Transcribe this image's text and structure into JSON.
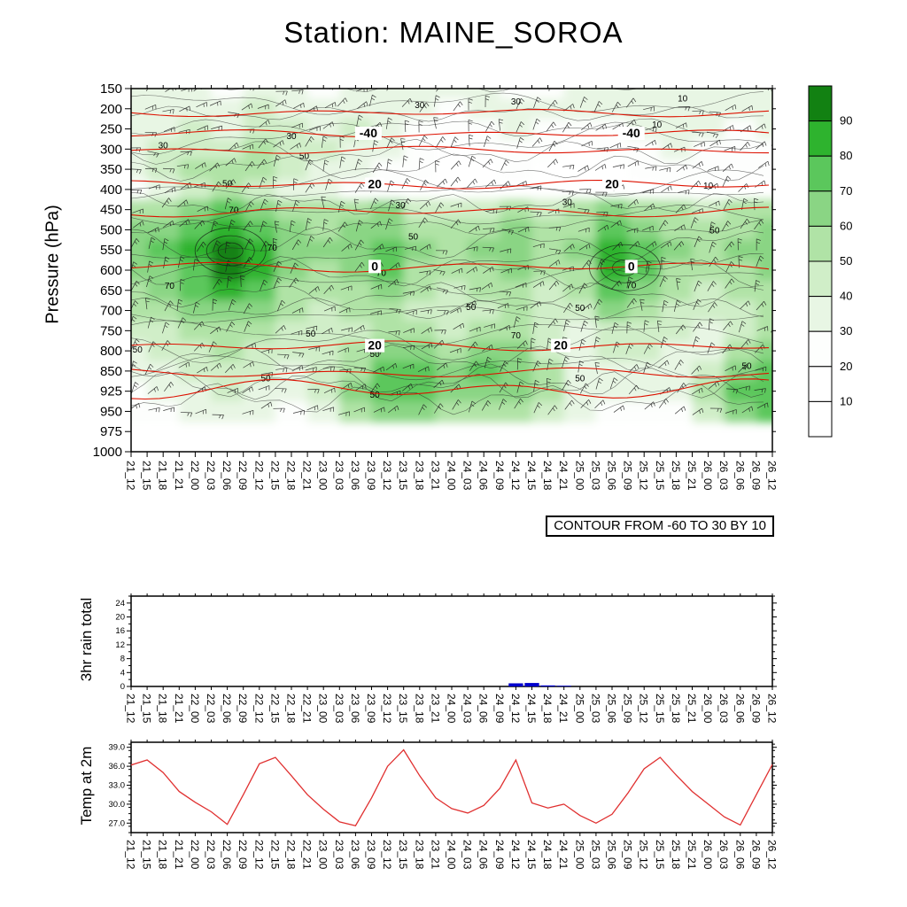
{
  "title": "Station: MAINE_SOROA",
  "time_labels": [
    "21_12",
    "21_15",
    "21_18",
    "21_21",
    "22_00",
    "22_03",
    "22_06",
    "22_09",
    "22_12",
    "22_15",
    "22_18",
    "22_21",
    "23_00",
    "23_03",
    "23_06",
    "23_09",
    "23_12",
    "23_15",
    "23_18",
    "23_21",
    "24_00",
    "24_03",
    "24_06",
    "24_09",
    "24_12",
    "24_15",
    "24_18",
    "24_21",
    "25_00",
    "25_03",
    "25_06",
    "25_09",
    "25_12",
    "25_15",
    "25_18",
    "25_21",
    "26_00",
    "26_03",
    "26_06",
    "26_09",
    "26_12"
  ],
  "chart_data": [
    {
      "id": "cross_section",
      "type": "heatmap",
      "ylabel": "Pressure (hPa)",
      "annotation": "CONTOUR FROM -60 TO 30 BY 10",
      "pressure_ticks": [
        150,
        200,
        250,
        300,
        350,
        400,
        450,
        500,
        550,
        600,
        650,
        700,
        750,
        800,
        850,
        925,
        950,
        975,
        1000
      ],
      "colorbar": {
        "tick_labels": [
          "90",
          "80",
          "70",
          "60",
          "50",
          "40",
          "30",
          "20",
          "10"
        ],
        "colors_top_to_bottom": [
          "#128112",
          "#2eb32e",
          "#5bc75c",
          "#8ad584",
          "#b0e3a6",
          "#d0eec8",
          "#e8f6e4",
          "#fdfefd",
          "#ffffff",
          "#ffffff"
        ]
      },
      "shaded_field": {
        "quantity": "green shaded field (humidity-style), percent",
        "col_times": [
          "21_12",
          "21_18",
          "22_00",
          "22_06",
          "22_12",
          "22_18",
          "23_00",
          "23_06",
          "23_12",
          "23_18",
          "24_00",
          "24_06",
          "24_12",
          "24_18",
          "25_00",
          "25_06",
          "25_12",
          "25_18",
          "26_00",
          "26_06",
          "26_12"
        ],
        "row_pressures": [
          150,
          200,
          250,
          300,
          350,
          400,
          450,
          500,
          550,
          600,
          650,
          700,
          750,
          800,
          850,
          925,
          950
        ],
        "values": [
          [
            30,
            32,
            30,
            28,
            34,
            30,
            26,
            30,
            34,
            30,
            30,
            30,
            28,
            26,
            30,
            30,
            34,
            30,
            30,
            30,
            30
          ],
          [
            34,
            30,
            36,
            32,
            40,
            34,
            30,
            38,
            34,
            30,
            26,
            30,
            34,
            30,
            30,
            34,
            30,
            30,
            34,
            30,
            34
          ],
          [
            30,
            36,
            40,
            36,
            44,
            40,
            34,
            40,
            30,
            26,
            20,
            26,
            30,
            26,
            20,
            26,
            30,
            34,
            30,
            26,
            30
          ],
          [
            36,
            40,
            46,
            42,
            50,
            44,
            40,
            34,
            30,
            20,
            16,
            20,
            26,
            20,
            16,
            20,
            26,
            30,
            26,
            20,
            26
          ],
          [
            30,
            40,
            50,
            56,
            50,
            40,
            34,
            30,
            26,
            20,
            16,
            16,
            20,
            16,
            14,
            16,
            20,
            26,
            20,
            20,
            20
          ],
          [
            26,
            36,
            46,
            52,
            46,
            36,
            30,
            26,
            20,
            14,
            10,
            10,
            14,
            10,
            10,
            10,
            14,
            20,
            16,
            14,
            16
          ],
          [
            50,
            56,
            62,
            72,
            66,
            56,
            50,
            56,
            60,
            44,
            40,
            44,
            50,
            42,
            50,
            60,
            56,
            50,
            46,
            50,
            56
          ],
          [
            60,
            66,
            72,
            82,
            76,
            60,
            56,
            60,
            66,
            56,
            50,
            56,
            60,
            50,
            56,
            70,
            66,
            56,
            50,
            56,
            60
          ],
          [
            66,
            72,
            82,
            96,
            86,
            66,
            60,
            66,
            70,
            60,
            56,
            60,
            66,
            56,
            60,
            80,
            70,
            60,
            56,
            60,
            66
          ],
          [
            60,
            66,
            76,
            92,
            82,
            60,
            56,
            60,
            70,
            56,
            50,
            56,
            60,
            50,
            56,
            86,
            76,
            56,
            50,
            56,
            60
          ],
          [
            56,
            60,
            70,
            82,
            72,
            56,
            50,
            56,
            66,
            50,
            46,
            50,
            56,
            46,
            50,
            76,
            66,
            50,
            46,
            50,
            56
          ],
          [
            50,
            56,
            60,
            66,
            60,
            50,
            46,
            50,
            56,
            46,
            40,
            46,
            50,
            40,
            46,
            60,
            56,
            46,
            40,
            46,
            50
          ],
          [
            40,
            46,
            50,
            56,
            50,
            46,
            40,
            46,
            56,
            50,
            46,
            56,
            50,
            40,
            34,
            46,
            46,
            40,
            34,
            46,
            56
          ],
          [
            34,
            40,
            46,
            50,
            46,
            40,
            40,
            50,
            60,
            66,
            56,
            66,
            60,
            46,
            34,
            40,
            40,
            34,
            34,
            50,
            60
          ],
          [
            30,
            34,
            40,
            46,
            40,
            34,
            40,
            56,
            70,
            76,
            60,
            70,
            66,
            50,
            34,
            34,
            34,
            30,
            40,
            60,
            70
          ],
          [
            26,
            30,
            34,
            40,
            34,
            30,
            40,
            60,
            76,
            70,
            60,
            66,
            60,
            56,
            34,
            30,
            30,
            30,
            50,
            70,
            76
          ],
          [
            20,
            26,
            30,
            34,
            30,
            26,
            34,
            56,
            66,
            60,
            50,
            56,
            50,
            46,
            30,
            26,
            26,
            26,
            46,
            66,
            70
          ]
        ]
      },
      "red_contour_lines": [
        {
          "pressure": 210,
          "amp": 3,
          "labels": []
        },
        {
          "pressure": 262,
          "amp": 3,
          "labels": [
            {
              "t": 0.37,
              "text": "-40"
            },
            {
              "t": 0.78,
              "text": "-40"
            }
          ]
        },
        {
          "pressure": 303,
          "amp": 3,
          "labels": []
        },
        {
          "pressure": 388,
          "amp": 3.5,
          "labels": [
            {
              "t": 0.38,
              "text": "20"
            },
            {
              "t": 0.75,
              "text": "20"
            }
          ]
        },
        {
          "pressure": 455,
          "amp": 4,
          "labels": []
        },
        {
          "pressure": 592,
          "amp": 4,
          "labels": [
            {
              "t": 0.38,
              "text": "0"
            },
            {
              "t": 0.78,
              "text": "0"
            }
          ]
        },
        {
          "pressure": 788,
          "amp": 4,
          "labels": [
            {
              "t": 0.38,
              "text": "20"
            },
            {
              "t": 0.67,
              "text": "20"
            }
          ]
        },
        {
          "pressure": 858,
          "amp": 4,
          "labels": []
        },
        {
          "pressure": 918,
          "amp": 8,
          "labels": []
        }
      ],
      "contour_color": "#dd1100",
      "black_contour_labels": [
        {
          "text": "30",
          "t": 0.45,
          "p": 192
        },
        {
          "text": "30",
          "t": 0.6,
          "p": 183
        },
        {
          "text": "10",
          "t": 0.82,
          "p": 240
        },
        {
          "text": "30",
          "t": 0.25,
          "p": 268
        },
        {
          "text": "30",
          "t": 0.05,
          "p": 292
        },
        {
          "text": "50",
          "t": 0.27,
          "p": 318
        },
        {
          "text": "50",
          "t": 0.15,
          "p": 386
        },
        {
          "text": "10",
          "t": 0.9,
          "p": 392
        },
        {
          "text": "30",
          "t": 0.68,
          "p": 432
        },
        {
          "text": "70",
          "t": 0.16,
          "p": 452
        },
        {
          "text": "30",
          "t": 0.42,
          "p": 440
        },
        {
          "text": "50",
          "t": 0.91,
          "p": 502
        },
        {
          "text": "50",
          "t": 0.44,
          "p": 518
        },
        {
          "text": "70",
          "t": 0.22,
          "p": 545
        },
        {
          "text": "70",
          "t": 0.39,
          "p": 608
        },
        {
          "text": "70",
          "t": 0.78,
          "p": 638
        },
        {
          "text": "70",
          "t": 0.06,
          "p": 640
        },
        {
          "text": "50",
          "t": 0.53,
          "p": 692
        },
        {
          "text": "50",
          "t": 0.7,
          "p": 694
        },
        {
          "text": "70",
          "t": 0.6,
          "p": 762
        },
        {
          "text": "50",
          "t": 0.28,
          "p": 758
        },
        {
          "text": "50",
          "t": 0.01,
          "p": 798
        },
        {
          "text": "50",
          "t": 0.38,
          "p": 808
        },
        {
          "text": "50",
          "t": 0.96,
          "p": 838
        },
        {
          "text": "50",
          "t": 0.21,
          "p": 878
        },
        {
          "text": "50",
          "t": 0.7,
          "p": 878
        },
        {
          "text": "50",
          "t": 0.38,
          "p": 930
        },
        {
          "text": "10",
          "t": 0.86,
          "p": 175
        }
      ],
      "maxima_marks": [
        {
          "t": 0.155,
          "p": 552
        },
        {
          "t": 0.77,
          "p": 594
        }
      ],
      "wind_barbs": true
    },
    {
      "id": "rain",
      "type": "bar",
      "ylabel": "3hr rain total",
      "yticks": [
        0,
        4,
        8,
        12,
        16,
        20,
        24
      ],
      "ylim": [
        0,
        26
      ],
      "bar_color": "#0000cc",
      "values": [
        0,
        0,
        0,
        0,
        0,
        0,
        0,
        0,
        0,
        0,
        0,
        0,
        0,
        0,
        0,
        0,
        0,
        0,
        0,
        0,
        0,
        0,
        0,
        0,
        0.9,
        1.0,
        0.3,
        0.2,
        0,
        0,
        0,
        0,
        0,
        0,
        0,
        0,
        0,
        0,
        0,
        0,
        0
      ]
    },
    {
      "id": "temp",
      "type": "line",
      "ylabel": "Temp at 2m",
      "yticks": [
        27,
        30,
        33,
        36,
        39
      ],
      "ytick_labels": [
        "27.0",
        "30.0",
        "33.0",
        "36.0",
        "39.0"
      ],
      "ylim": [
        25.5,
        39.8
      ],
      "line_color": "#e03030",
      "values": [
        36.2,
        37.0,
        35.0,
        32.0,
        30.3,
        28.8,
        26.8,
        31.5,
        36.4,
        37.4,
        34.5,
        31.5,
        29.2,
        27.2,
        26.6,
        31.0,
        36.0,
        38.6,
        34.5,
        31.0,
        29.3,
        28.6,
        29.8,
        32.5,
        37.0,
        30.2,
        29.4,
        30.0,
        28.2,
        27.0,
        28.4,
        31.8,
        35.6,
        37.4,
        34.6,
        32.0,
        30.0,
        28.0,
        26.7,
        31.5,
        36.3
      ]
    }
  ]
}
